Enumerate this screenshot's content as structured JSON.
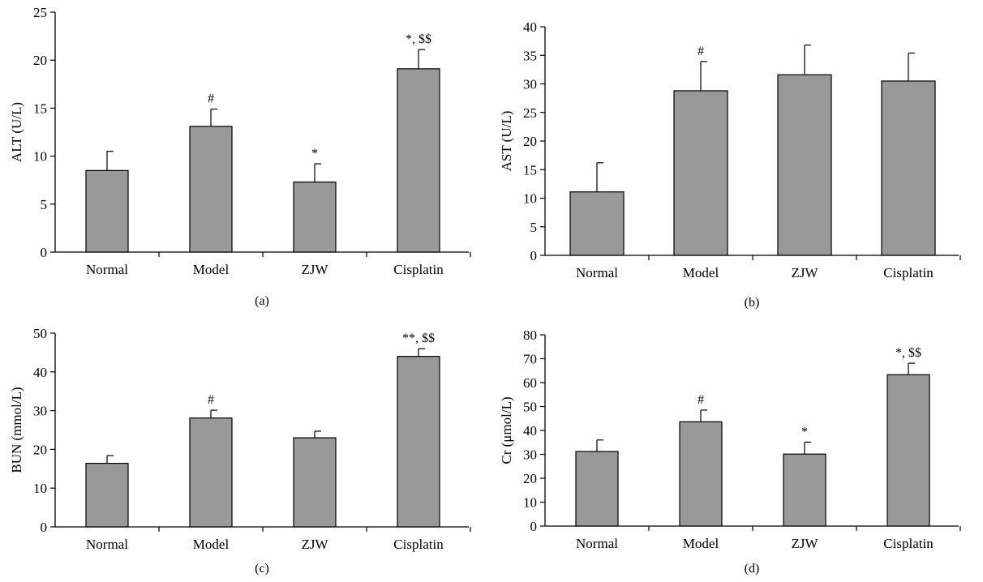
{
  "chart_data": [
    {
      "type": "bar",
      "panel_label": "(a)",
      "ylabel": "ALT (U/L)",
      "ylim": [
        0,
        25
      ],
      "yticks": [
        0,
        5,
        10,
        15,
        20,
        25
      ],
      "categories": [
        "Normal",
        "Model",
        "ZJW",
        "Cisplatin"
      ],
      "values": [
        8.5,
        13.1,
        7.3,
        19.1
      ],
      "errors": [
        2.0,
        1.8,
        1.9,
        2.0
      ],
      "annotations": [
        "",
        "#",
        "*",
        "*, $$"
      ],
      "bar_color": "#999999"
    },
    {
      "type": "bar",
      "panel_label": "(b)",
      "ylabel": "AST (U/L)",
      "ylim": [
        0,
        40
      ],
      "yticks": [
        0,
        5,
        10,
        15,
        20,
        25,
        30,
        35,
        40
      ],
      "categories": [
        "Normal",
        "Model",
        "ZJW",
        "Cisplatin"
      ],
      "values": [
        11.1,
        28.8,
        31.6,
        30.5
      ],
      "errors": [
        5.1,
        5.1,
        5.2,
        4.9
      ],
      "annotations": [
        "",
        "#",
        "",
        ""
      ],
      "bar_color": "#999999"
    },
    {
      "type": "bar",
      "panel_label": "(c)",
      "ylabel": "BUN (mmol/L)",
      "ylim": [
        0,
        50
      ],
      "yticks": [
        0,
        10,
        20,
        30,
        40,
        50
      ],
      "categories": [
        "Normal",
        "Model",
        "ZJW",
        "Cisplatin"
      ],
      "values": [
        16.4,
        28.1,
        23.0,
        44.0
      ],
      "errors": [
        2.0,
        2.0,
        1.7,
        2.0
      ],
      "annotations": [
        "",
        "#",
        "",
        "**, $$"
      ],
      "bar_color": "#999999"
    },
    {
      "type": "bar",
      "panel_label": "(d)",
      "ylabel": "Cr (μmol/L)",
      "ylim": [
        0,
        80
      ],
      "yticks": [
        0,
        10,
        20,
        30,
        40,
        50,
        60,
        70,
        80
      ],
      "categories": [
        "Normal",
        "Model",
        "ZJW",
        "Cisplatin"
      ],
      "values": [
        31.2,
        43.6,
        30.1,
        63.3
      ],
      "errors": [
        4.8,
        4.9,
        5.0,
        4.8
      ],
      "annotations": [
        "",
        "#",
        "*",
        "*, $$"
      ],
      "bar_color": "#999999"
    }
  ]
}
